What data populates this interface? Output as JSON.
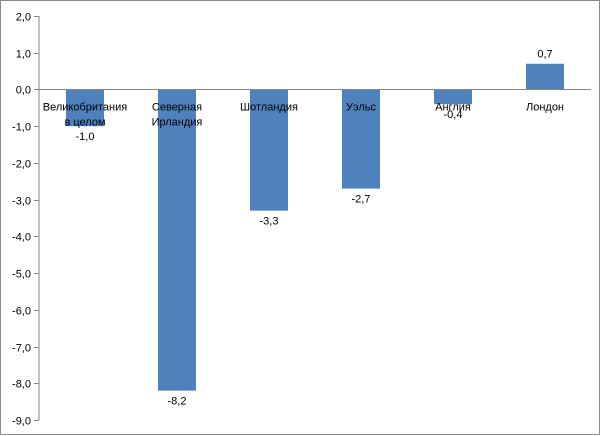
{
  "chart_data": {
    "type": "bar",
    "title": "",
    "xlabel": "",
    "ylabel": "",
    "ylim": [
      -9.0,
      2.0
    ],
    "yticks": [
      2.0,
      1.0,
      0.0,
      -1.0,
      -2.0,
      -3.0,
      -4.0,
      -5.0,
      -6.0,
      -7.0,
      -8.0,
      -9.0
    ],
    "ytick_labels": [
      "2,0",
      "1,0",
      "0,0",
      "-1,0",
      "-2,0",
      "-3,0",
      "-4,0",
      "-5,0",
      "-6,0",
      "-7,0",
      "-8,0",
      "-9,0"
    ],
    "grid": false,
    "legend": "none",
    "bar_color": "#4f81bd",
    "categories": [
      [
        "Великобритания",
        "в целом"
      ],
      [
        "Северная",
        "Ирландия"
      ],
      [
        "Шотландия"
      ],
      [
        "Уэльс"
      ],
      [
        "Англия"
      ],
      [
        "Лондон"
      ]
    ],
    "values": [
      -1.0,
      -8.2,
      -3.3,
      -2.7,
      -0.4,
      0.7
    ],
    "data_labels": [
      "-1,0",
      "-8,2",
      "-3,3",
      "-2,7",
      "-0,4",
      "0,7"
    ]
  }
}
